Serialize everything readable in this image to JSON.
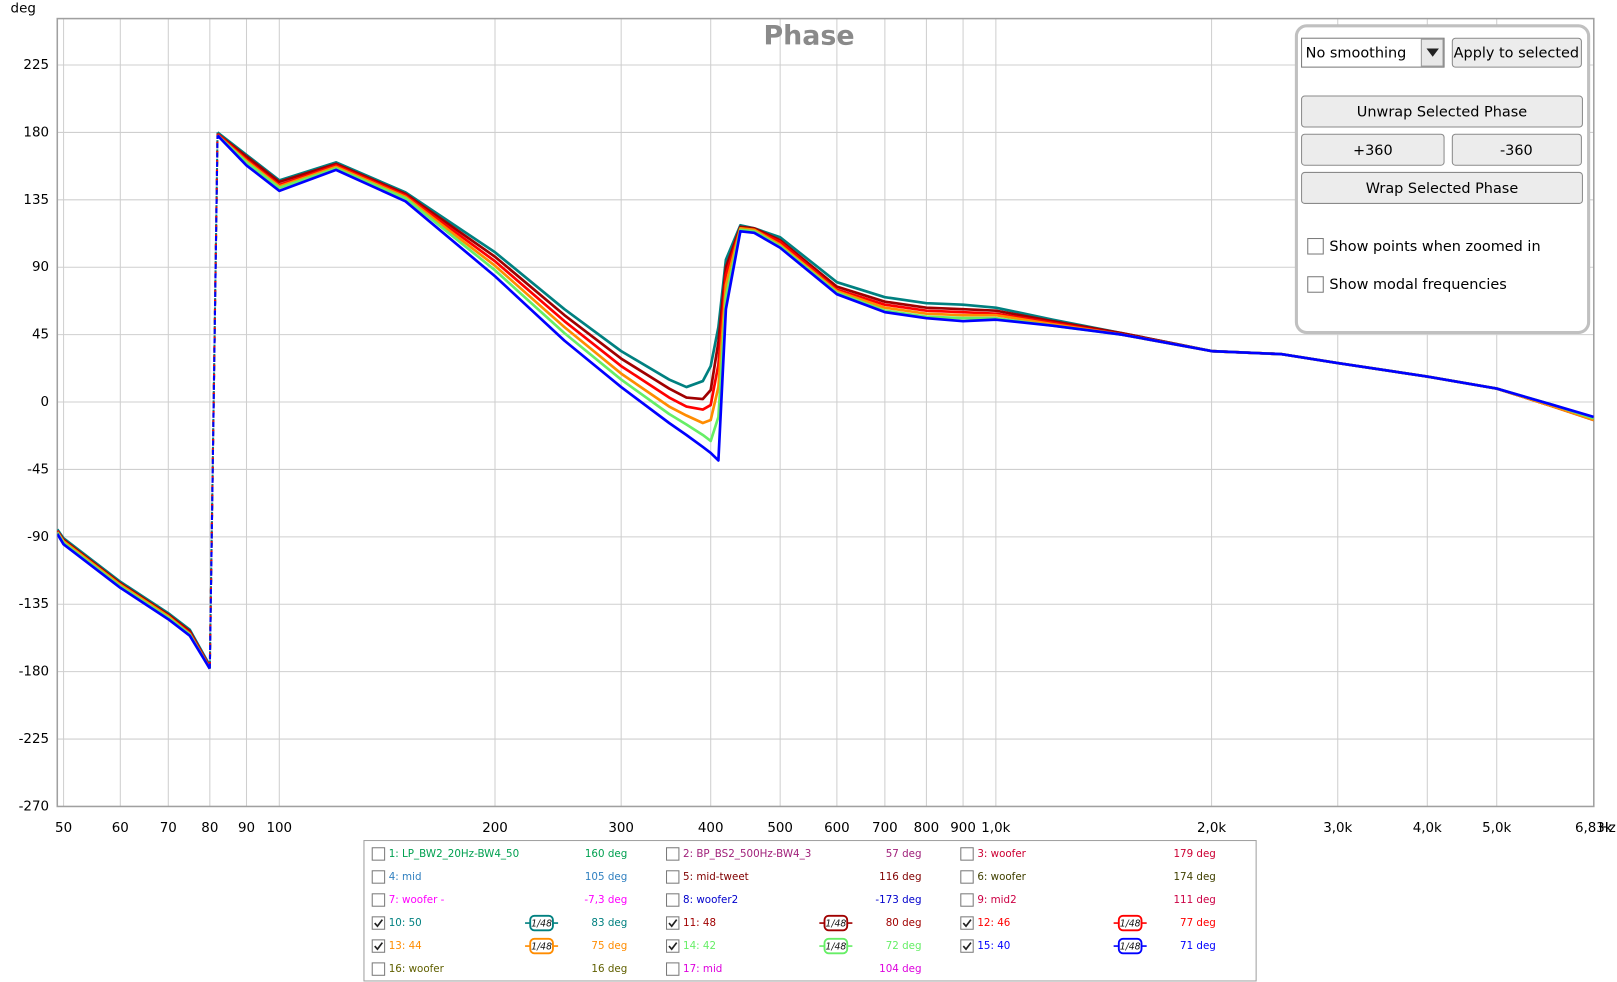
{
  "chart_data": {
    "type": "line",
    "title": "Phase",
    "y_label": "deg",
    "x_unit": "Hz",
    "x_scale": "log",
    "grid": true,
    "xlim": [
      49,
      6830
    ],
    "ylim": [
      -270,
      256
    ],
    "xticks": [
      50,
      60,
      70,
      80,
      90,
      100,
      200,
      300,
      400,
      500,
      600,
      700,
      800,
      900,
      {
        "value": 1000,
        "label": "1,0k"
      },
      {
        "value": 2000,
        "label": "2,0k"
      },
      {
        "value": 3000,
        "label": "3,0k"
      },
      {
        "value": 4000,
        "label": "4,0k"
      },
      {
        "value": 5000,
        "label": "5,0k"
      },
      {
        "value": 6830,
        "label": "6,83k"
      }
    ],
    "yticks": [
      -270,
      -225,
      -180,
      -135,
      -90,
      -45,
      0,
      45,
      90,
      135,
      180,
      225
    ],
    "x": [
      49,
      50,
      60,
      70,
      75,
      80,
      81,
      82,
      90,
      100,
      120,
      150,
      200,
      250,
      300,
      350,
      370,
      390,
      400,
      410,
      420,
      440,
      460,
      500,
      600,
      700,
      800,
      900,
      1000,
      1200,
      1500,
      2000,
      2500,
      3000,
      4000,
      5000,
      6000,
      6830
    ],
    "series": [
      {
        "name": "10: 50",
        "color": "#008080",
        "checked": true,
        "smoothing": "1/48",
        "readout": "83 deg",
        "values": [
          -85,
          -91,
          -120,
          -141,
          -152,
          -176,
          null,
          180,
          165,
          148,
          160,
          140,
          100,
          62,
          34,
          15,
          10,
          14,
          24,
          50,
          95,
          118,
          116,
          110,
          80,
          70,
          66,
          65,
          63,
          55,
          46,
          34,
          32,
          26,
          17,
          9,
          -3,
          -12
        ]
      },
      {
        "name": "11: 48",
        "color": "#a00000",
        "checked": true,
        "smoothing": "1/48",
        "readout": "80 deg",
        "values": [
          -86,
          -92,
          -121,
          -142,
          -153,
          -177,
          null,
          179,
          164,
          147,
          159,
          139,
          97,
          58,
          29,
          9,
          3,
          2,
          8,
          40,
          90,
          117,
          116,
          108,
          77,
          67,
          63,
          62,
          61,
          54,
          46,
          34,
          32,
          26,
          17,
          9,
          -3,
          -12
        ]
      },
      {
        "name": "12: 46",
        "color": "#ff0000",
        "checked": true,
        "smoothing": "1/48",
        "readout": "77 deg",
        "values": [
          -86,
          -93,
          -122,
          -143,
          -154,
          -177,
          null,
          179,
          162,
          145,
          158,
          138,
          94,
          54,
          24,
          3,
          -3,
          -5,
          -2,
          25,
          85,
          116,
          115,
          107,
          75,
          65,
          61,
          60,
          59,
          53,
          45,
          34,
          32,
          26,
          17,
          9,
          -3,
          -12
        ]
      },
      {
        "name": "13: 44",
        "color": "#ff8c00",
        "checked": true,
        "smoothing": "1/48",
        "readout": "75 deg",
        "values": [
          -87,
          -93,
          -122,
          -143,
          -155,
          -178,
          null,
          178,
          161,
          144,
          157,
          137,
          91,
          50,
          19,
          -3,
          -9,
          -14,
          -12,
          10,
          78,
          116,
          115,
          105,
          74,
          63,
          59,
          58,
          58,
          52,
          45,
          34,
          32,
          26,
          17,
          9,
          -3,
          -12
        ]
      },
      {
        "name": "14: 42",
        "color": "#66ee66",
        "checked": true,
        "smoothing": "1/48",
        "readout": "72 deg",
        "values": [
          -87,
          -94,
          -123,
          -144,
          -155,
          -178,
          null,
          178,
          160,
          143,
          156,
          136,
          88,
          46,
          15,
          -8,
          -15,
          -22,
          -26,
          -10,
          70,
          115,
          114,
          104,
          73,
          61,
          57,
          56,
          56,
          51,
          45,
          34,
          32,
          26,
          17,
          9,
          -2,
          -11
        ]
      },
      {
        "name": "15: 40",
        "color": "#0000ff",
        "checked": true,
        "smoothing": "1/48",
        "readout": "71 deg",
        "values": [
          -88,
          -95,
          -124,
          -145,
          -156,
          -178,
          null,
          178,
          158,
          141,
          155,
          134,
          84,
          41,
          10,
          -14,
          -22,
          -30,
          -34,
          -39,
          62,
          114,
          113,
          103,
          72,
          60,
          56,
          54,
          55,
          51,
          45,
          34,
          32,
          26,
          17,
          9,
          -2,
          -10
        ]
      }
    ],
    "other_traces": [
      {
        "name": "1: LP_BW2_20Hz-BW4_50",
        "color": "#00a050",
        "checked": false,
        "readout": "160 deg"
      },
      {
        "name": "2: BP_BS2_500Hz-BW4_3",
        "color": "#a0207a",
        "checked": false,
        "readout": "57 deg"
      },
      {
        "name": "3: woofer",
        "color": "#cc0033",
        "checked": false,
        "readout": "179 deg"
      },
      {
        "name": "4: mid",
        "color": "#3080c0",
        "checked": false,
        "readout": "105 deg"
      },
      {
        "name": "5: mid-tweet",
        "color": "#800000",
        "checked": false,
        "readout": "116 deg"
      },
      {
        "name": "6: woofer",
        "color": "#404000",
        "checked": false,
        "readout": "174 deg"
      },
      {
        "name": "7: woofer -",
        "color": "#ff00ff",
        "checked": false,
        "readout": "-7,3 deg"
      },
      {
        "name": "8: woofer2",
        "color": "#0000cc",
        "checked": false,
        "readout": "-173 deg"
      },
      {
        "name": "9: mid2",
        "color": "#cc0044",
        "checked": false,
        "readout": "111 deg"
      },
      {
        "name": "16: woofer",
        "color": "#606000",
        "checked": false,
        "readout": "16 deg"
      },
      {
        "name": "17: mid",
        "color": "#dd00dd",
        "checked": false,
        "readout": "104 deg"
      }
    ]
  },
  "controls": {
    "smoothing_select": "No  smoothing",
    "apply_button": "Apply to selected",
    "unwrap_button": "Unwrap Selected Phase",
    "plus_button": "+360",
    "minus_button": "-360",
    "wrap_button": "Wrap Selected Phase",
    "checkboxes": [
      {
        "label": "Show points when zoomed in",
        "checked": false
      },
      {
        "label": "Show modal frequencies",
        "checked": false
      }
    ]
  }
}
